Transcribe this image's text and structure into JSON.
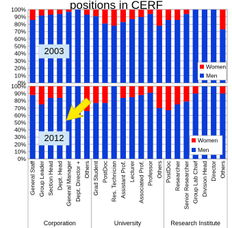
{
  "title_fragment": "positions in CERF",
  "colors": {
    "women": "#ff0000",
    "men": "#0a3cd8",
    "label_box": "#cfe6f7",
    "arrow": "#ffea00"
  },
  "chart_data": [
    {
      "type": "bar",
      "stacked": true,
      "panel_label": "2003",
      "yticks": [
        "0%",
        "10%",
        "20%",
        "30%",
        "40%",
        "50%",
        "60%",
        "70%",
        "80%",
        "90%",
        "100%"
      ],
      "ylim": [
        0,
        100
      ],
      "grid": true,
      "legend_position": "bottom-right",
      "series": [
        {
          "name": "Women",
          "values": [
            14,
            8,
            7,
            6,
            3,
            0,
            7,
            9,
            19,
            22,
            17,
            13,
            10,
            6,
            22,
            14,
            14,
            6,
            0,
            0,
            0,
            27
          ]
        },
        {
          "name": "Men",
          "values": [
            86,
            92,
            93,
            94,
            97,
            100,
            93,
            91,
            81,
            78,
            83,
            87,
            90,
            94,
            78,
            86,
            86,
            94,
            100,
            100,
            100,
            73
          ]
        }
      ]
    },
    {
      "type": "bar",
      "stacked": true,
      "panel_label": "2012",
      "yticks": [
        "0%",
        "10%",
        "20%",
        "30%",
        "40%",
        "50%",
        "60%",
        "70%",
        "80%",
        "90%",
        "100%"
      ],
      "ylim": [
        0,
        100
      ],
      "grid": true,
      "legend_position": "bottom-right",
      "categories": [
        "General Staff",
        "Group Leader",
        "Section Head",
        "Dept. Head",
        "General Manager",
        "Dept. Director +",
        "Others",
        "Grad Student",
        "PostDoc",
        "Res. Technician",
        "Assistant Prof.",
        "Lecturer",
        "Associated Prof.",
        "Professor",
        "Others",
        "PostDoc",
        "Researcher",
        "Senior Researcher",
        "Group Lab Chief",
        "Division Head",
        "Director",
        "Others"
      ],
      "groups": [
        {
          "label": "Corporation",
          "start": 0,
          "end": 6
        },
        {
          "label": "University",
          "start": 7,
          "end": 14
        },
        {
          "label": "Research Institute",
          "start": 15,
          "end": 21
        }
      ],
      "series": [
        {
          "name": "Women",
          "values": [
            12,
            25,
            16,
            16,
            0,
            0,
            34,
            23,
            23,
            0,
            16,
            15,
            12,
            9,
            30,
            33,
            25,
            21,
            10,
            0,
            0,
            10
          ]
        },
        {
          "name": "Men",
          "values": [
            88,
            75,
            84,
            84,
            100,
            100,
            66,
            77,
            77,
            100,
            84,
            85,
            88,
            91,
            70,
            67,
            75,
            79,
            90,
            100,
            100,
            90
          ]
        }
      ]
    }
  ]
}
